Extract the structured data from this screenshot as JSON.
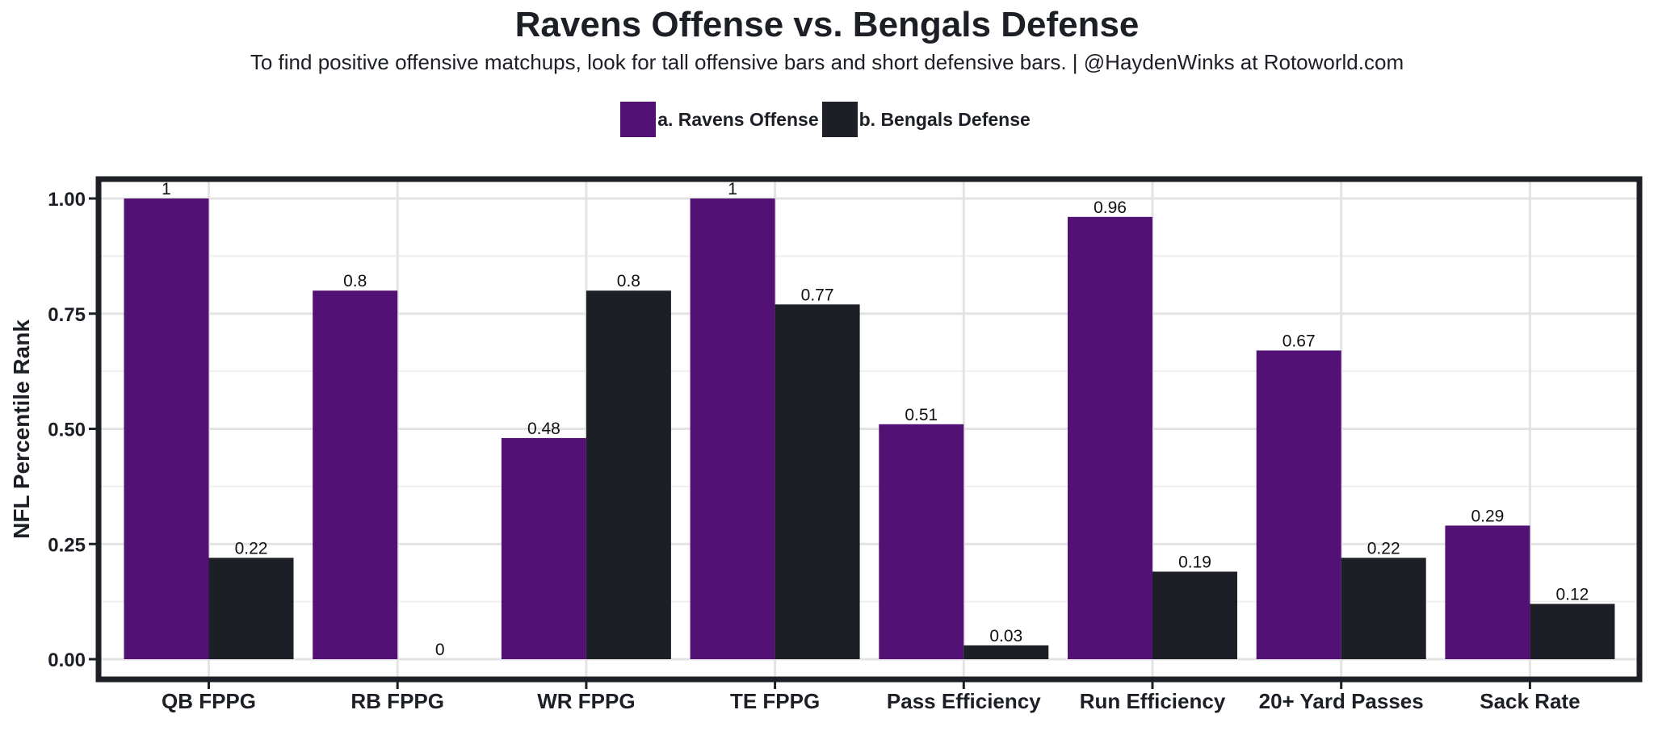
{
  "chart_data": {
    "type": "bar",
    "title": "Ravens Offense vs. Bengals Defense",
    "subtitle": "To find positive offensive matchups, look for tall offensive bars and short defensive bars. | @HaydenWinks at Rotoworld.com",
    "xlabel": "",
    "ylabel": "NFL Percentile Rank",
    "ylim": [
      0,
      1.0
    ],
    "yticks": [
      "0.00",
      "0.25",
      "0.50",
      "0.75",
      "1.00"
    ],
    "ytick_values": [
      0,
      0.25,
      0.5,
      0.75,
      1.0
    ],
    "grid": true,
    "legend_position": "top-center",
    "categories": [
      "QB FPPG",
      "RB FPPG",
      "WR FPPG",
      "TE FPPG",
      "Pass Efficiency",
      "Run Efficiency",
      "20+ Yard Passes",
      "Sack Rate"
    ],
    "series": [
      {
        "name": "a. Ravens Offense",
        "color": "#531075",
        "values": [
          1,
          0.8,
          0.48,
          1,
          0.51,
          0.96,
          0.67,
          0.29
        ],
        "labels": [
          "1",
          "0.8",
          "0.48",
          "1",
          "0.51",
          "0.96",
          "0.67",
          "0.29"
        ]
      },
      {
        "name": "b. Bengals Defense",
        "color": "#1d1f26",
        "values": [
          0.22,
          0,
          0.8,
          0.77,
          0.03,
          0.19,
          0.22,
          0.12
        ],
        "labels": [
          "0.22",
          "0",
          "0.8",
          "0.77",
          "0.03",
          "0.19",
          "0.22",
          "0.12"
        ]
      }
    ]
  }
}
